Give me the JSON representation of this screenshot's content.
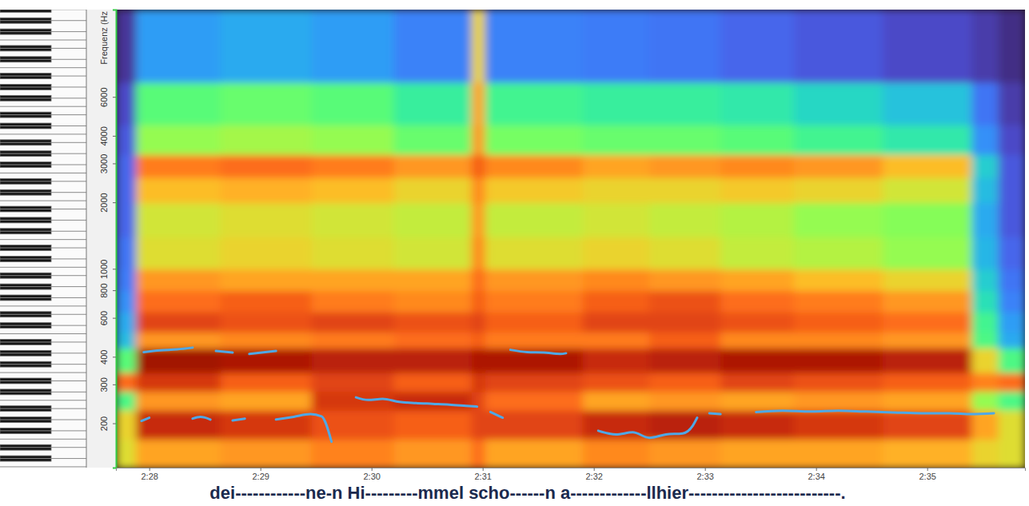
{
  "chart_data": {
    "type": "spectrogram",
    "y_label": "Frequenz (Hz",
    "caption": "dei------------ne-n Hi---------mmel scho------n a-------------llhier--------------------------.",
    "xlim": [
      147.7,
      155.88
    ],
    "xticks": [
      {
        "value": 148,
        "label": "2:28"
      },
      {
        "value": 149,
        "label": "2:29"
      },
      {
        "value": 150,
        "label": "2:30"
      },
      {
        "value": 151,
        "label": "2:31"
      },
      {
        "value": 152,
        "label": "2:32"
      },
      {
        "value": 153,
        "label": "2:33"
      },
      {
        "value": 154,
        "label": "2:34"
      },
      {
        "value": 155,
        "label": "2:35"
      }
    ],
    "ylim": [
      126,
      14900
    ],
    "yticks": [
      200,
      300,
      400,
      600,
      800,
      1000,
      2000,
      3000,
      4000,
      6000
    ],
    "log": "y",
    "grid": false,
    "color": "turbo",
    "zlim": [
      0,
      100
    ],
    "time_bins": [
      147.7,
      147.88,
      148.64,
      149.46,
      150.2,
      150.9,
      151.02,
      151.9,
      152.5,
      153.14,
      153.8,
      154.6,
      155.4,
      155.64,
      155.88
    ],
    "frequency_bins": [
      126,
      170,
      230,
      280,
      340,
      440,
      520,
      640,
      800,
      1000,
      1400,
      2000,
      2600,
      3300,
      4500,
      7000,
      14900
    ],
    "cells": [
      [
        60,
        70,
        72,
        75,
        72,
        78,
        70,
        74,
        72,
        70,
        70,
        68,
        62,
        60
      ],
      [
        62,
        88,
        86,
        82,
        80,
        84,
        84,
        88,
        90,
        88,
        86,
        84,
        70,
        60
      ],
      [
        40,
        72,
        70,
        86,
        88,
        84,
        78,
        70,
        72,
        70,
        72,
        70,
        50,
        40
      ],
      [
        78,
        86,
        80,
        84,
        80,
        86,
        84,
        82,
        80,
        84,
        82,
        80,
        75,
        78
      ],
      [
        42,
        94,
        92,
        90,
        90,
        92,
        92,
        88,
        90,
        92,
        92,
        90,
        62,
        40
      ],
      [
        25,
        72,
        74,
        76,
        78,
        80,
        76,
        76,
        80,
        74,
        74,
        72,
        40,
        22
      ],
      [
        22,
        84,
        82,
        84,
        82,
        84,
        80,
        84,
        84,
        82,
        80,
        78,
        38,
        20
      ],
      [
        18,
        78,
        80,
        76,
        74,
        80,
        76,
        80,
        82,
        78,
        76,
        72,
        32,
        16
      ],
      [
        15,
        72,
        70,
        70,
        70,
        78,
        72,
        74,
        72,
        70,
        66,
        62,
        28,
        14
      ],
      [
        14,
        60,
        62,
        60,
        58,
        74,
        60,
        62,
        60,
        56,
        54,
        50,
        24,
        12
      ],
      [
        12,
        58,
        60,
        58,
        56,
        72,
        56,
        58,
        56,
        54,
        50,
        48,
        22,
        10
      ],
      [
        12,
        66,
        68,
        66,
        62,
        74,
        64,
        62,
        62,
        64,
        62,
        58,
        25,
        10
      ],
      [
        12,
        76,
        78,
        76,
        72,
        80,
        74,
        70,
        72,
        74,
        72,
        66,
        28,
        10
      ],
      [
        10,
        50,
        52,
        50,
        44,
        72,
        46,
        44,
        44,
        42,
        38,
        34,
        18,
        8
      ],
      [
        8,
        42,
        44,
        42,
        36,
        70,
        38,
        36,
        36,
        34,
        30,
        26,
        14,
        6
      ],
      [
        5,
        20,
        22,
        20,
        16,
        62,
        16,
        15,
        14,
        12,
        10,
        8,
        6,
        4
      ]
    ],
    "series": [
      {
        "color": "#4fa8e6",
        "x": [
          147.93,
          148.0,
          148.2,
          148.39,
          148.46,
          148.55,
          148.65,
          148.75,
          148.86,
          149.0,
          149.14,
          149.3,
          149.45,
          149.55,
          149.64,
          149.75,
          149.86,
          149.97,
          150.1,
          150.25,
          150.4,
          150.55,
          150.7,
          150.85,
          150.95,
          151.01,
          151.07,
          151.18,
          151.6,
          152.04,
          152.2,
          152.35,
          152.5,
          152.65,
          152.8,
          152.89,
          152.93,
          152.98,
          153.04,
          153.14,
          153.3,
          153.46,
          153.7,
          153.95,
          154.2,
          154.45,
          154.7,
          154.95,
          155.2,
          155.4,
          155.6
        ],
        "values": [
          205,
          212,
          null,
          210,
          214,
          208,
          null,
          206,
          210,
          null,
          208,
          214,
          220,
          215,
          165,
          null,
          262,
          255,
          258,
          250,
          247,
          245,
          243,
          240,
          238,
          null,
          225,
          212,
          null,
          185,
          178,
          182,
          172,
          178,
          180,
          195,
          212,
          null,
          222,
          220,
          null,
          225,
          228,
          226,
          228,
          226,
          224,
          222,
          222,
          220,
          222
        ]
      },
      {
        "color": "#4fa8e6",
        "x": [
          147.95,
          148.1,
          148.25,
          148.39,
          148.5,
          148.6,
          148.75,
          148.82,
          148.9,
          149.14,
          150.2,
          151.25,
          151.4,
          151.55,
          151.7,
          151.75
        ],
        "values": [
          420,
          428,
          432,
          440,
          null,
          425,
          418,
          null,
          412,
          425,
          null,
          430,
          420,
          418,
          412,
          415
        ]
      }
    ]
  }
}
